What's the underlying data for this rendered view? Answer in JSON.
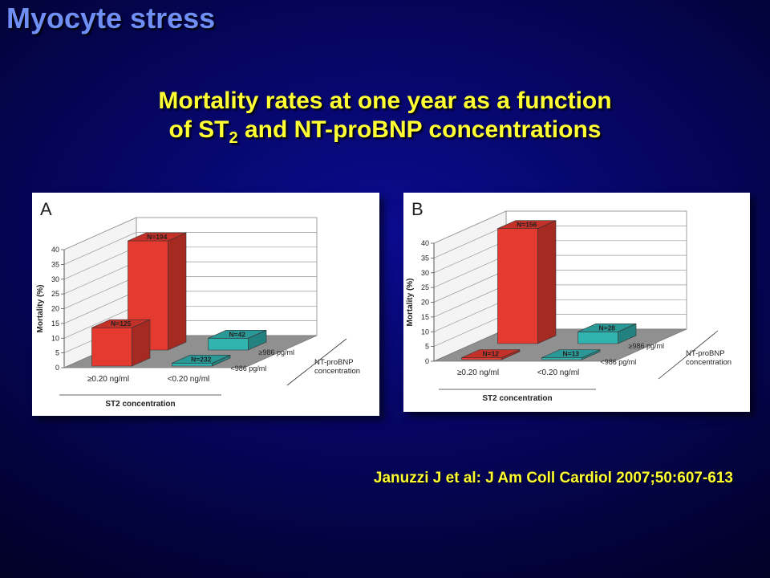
{
  "slide": {
    "title": "Myocyte stress",
    "subtitle_line1": "Mortality rates at one year as a function",
    "subtitle_line2_pre": "of ST",
    "subtitle_line2_sub": "2",
    "subtitle_line2_post": " and NT-proBNP concentrations",
    "citation": "Januzzi J et al: J Am Coll Cardiol 2007;50:607-613"
  },
  "colors": {
    "red": "#e53a2f",
    "teal": "#31b3b0"
  },
  "chart_data": [
    {
      "type": "bar",
      "panel": "A",
      "ylabel": "Mortality (%)",
      "ylim": [
        0,
        40
      ],
      "yticks": [
        0,
        5,
        10,
        15,
        20,
        25,
        30,
        35,
        40
      ],
      "xlabel": "ST2 concentration",
      "categories": [
        "≥0.20 ng/ml",
        "<0.20 ng/ml"
      ],
      "depth_label": "NT-proBNP concentration",
      "depth_categories": [
        "<986 pg/ml",
        "≥986 pg/ml"
      ],
      "bars": [
        {
          "st2": "≥0.20 ng/ml",
          "ntprobnp": "<986 pg/ml",
          "value": 13,
          "n_label": "N=125",
          "color": "red"
        },
        {
          "st2": "≥0.20 ng/ml",
          "ntprobnp": "≥986 pg/ml",
          "value": 37,
          "n_label": "N=194",
          "color": "red"
        },
        {
          "st2": "<0.20 ng/ml",
          "ntprobnp": "<986 pg/ml",
          "value": 1,
          "n_label": "N=232",
          "color": "teal"
        },
        {
          "st2": "<0.20 ng/ml",
          "ntprobnp": "≥986 pg/ml",
          "value": 4,
          "n_label": "N=42",
          "color": "teal"
        }
      ]
    },
    {
      "type": "bar",
      "panel": "B",
      "ylabel": "Mortality (%)",
      "ylim": [
        0,
        40
      ],
      "yticks": [
        0,
        5,
        10,
        15,
        20,
        25,
        30,
        35,
        40
      ],
      "xlabel": "ST2 concentration",
      "categories": [
        "≥0.20 ng/ml",
        "<0.20 ng/ml"
      ],
      "depth_label": "NT-proBNP concentration",
      "depth_categories": [
        "<986 pg/ml",
        "≥986 pg/ml"
      ],
      "bars": [
        {
          "st2": "≥0.20 ng/ml",
          "ntprobnp": "<986 pg/ml",
          "value": 0,
          "n_label": "N=12",
          "color": "red"
        },
        {
          "st2": "≥0.20 ng/ml",
          "ntprobnp": "≥986 pg/ml",
          "value": 39,
          "n_label": "N=156",
          "color": "red"
        },
        {
          "st2": "<0.20 ng/ml",
          "ntprobnp": "<986 pg/ml",
          "value": 0,
          "n_label": "N=13",
          "color": "teal"
        },
        {
          "st2": "<0.20 ng/ml",
          "ntprobnp": "≥986 pg/ml",
          "value": 4,
          "n_label": "N=28",
          "color": "teal"
        }
      ]
    }
  ]
}
